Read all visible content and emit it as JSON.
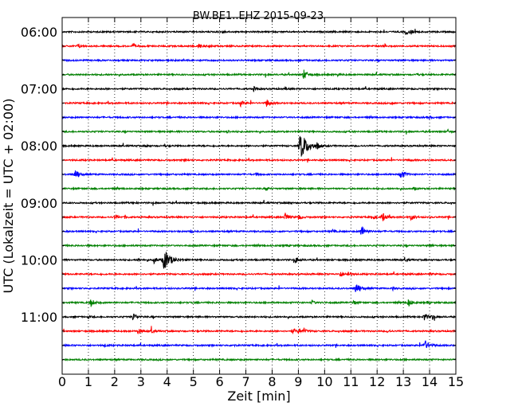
{
  "chart_data": {
    "type": "line",
    "title": "BW.BE1..EHZ 2015-09-23",
    "xlabel": "Zeit  [min]",
    "ylabel": "UTC (Lokalzeit = UTC + 02:00)",
    "xlim": [
      0,
      15
    ],
    "x_ticks": [
      "0",
      "1",
      "2",
      "3",
      "4",
      "5",
      "6",
      "7",
      "8",
      "9",
      "10",
      "11",
      "12",
      "13",
      "14",
      "15"
    ],
    "y_tick_labels": [
      "06:00",
      "07:00",
      "08:00",
      "09:00",
      "10:00",
      "11:00"
    ],
    "grid": true,
    "colors": [
      "#000000",
      "#ff0000",
      "#0000ff",
      "#008000"
    ],
    "series": [
      {
        "start": "06:00",
        "events": [
          [
            6.1,
            0.25
          ],
          [
            13.1,
            0.4
          ],
          [
            13.3,
            0.2
          ]
        ]
      },
      {
        "start": "06:15",
        "events": [
          [
            0.6,
            0.3
          ],
          [
            2.7,
            0.3
          ],
          [
            5.2,
            0.35
          ],
          [
            5.6,
            0.15
          ],
          [
            12.3,
            0.2
          ]
        ]
      },
      {
        "start": "06:30",
        "events": []
      },
      {
        "start": "06:45",
        "events": [
          [
            9.2,
            0.6
          ],
          [
            10.5,
            0.15
          ],
          [
            13.5,
            0.15
          ]
        ]
      },
      {
        "start": "07:00",
        "events": [
          [
            7.3,
            0.3
          ],
          [
            8.5,
            0.15
          ]
        ]
      },
      {
        "start": "07:15",
        "events": [
          [
            6.8,
            0.35
          ],
          [
            7.8,
            0.5
          ],
          [
            12.5,
            0.15
          ]
        ]
      },
      {
        "start": "07:30",
        "events": [
          [
            14.0,
            0.15
          ]
        ]
      },
      {
        "start": "07:45",
        "events": [
          [
            6.3,
            0.2
          ],
          [
            14.7,
            0.2
          ]
        ]
      },
      {
        "start": "08:00",
        "events": [
          [
            3.2,
            0.15
          ],
          [
            3.9,
            0.15
          ],
          [
            9.1,
            1.6
          ],
          [
            9.7,
            0.35
          ]
        ]
      },
      {
        "start": "08:15",
        "events": [
          [
            4.7,
            0.15
          ],
          [
            13.2,
            0.15
          ]
        ]
      },
      {
        "start": "08:30",
        "events": [
          [
            0.5,
            0.6
          ],
          [
            7.4,
            0.2
          ],
          [
            12.9,
            0.6
          ]
        ]
      },
      {
        "start": "08:45",
        "events": [
          [
            7.8,
            0.15
          ],
          [
            13.4,
            0.15
          ]
        ]
      },
      {
        "start": "09:00",
        "events": [
          [
            2.7,
            0.15
          ],
          [
            8.6,
            0.15
          ]
        ]
      },
      {
        "start": "09:15",
        "events": [
          [
            2.0,
            0.3
          ],
          [
            2.4,
            0.2
          ],
          [
            8.5,
            0.5
          ],
          [
            9.0,
            0.35
          ],
          [
            11.8,
            0.35
          ],
          [
            12.2,
            0.6
          ],
          [
            13.3,
            0.4
          ]
        ]
      },
      {
        "start": "09:30",
        "events": [
          [
            4.9,
            0.2
          ],
          [
            10.3,
            0.2
          ],
          [
            11.4,
            0.7
          ]
        ]
      },
      {
        "start": "09:45",
        "events": [
          [
            8.5,
            0.15
          ],
          [
            14.0,
            0.2
          ]
        ]
      },
      {
        "start": "10:00",
        "events": [
          [
            2.9,
            0.15
          ],
          [
            3.5,
            0.4
          ],
          [
            3.9,
            1.3
          ],
          [
            8.9,
            0.4
          ],
          [
            13.1,
            0.2
          ]
        ]
      },
      {
        "start": "10:15",
        "events": [
          [
            10.6,
            0.4
          ],
          [
            10.9,
            0.3
          ],
          [
            14.0,
            0.15
          ]
        ]
      },
      {
        "start": "10:30",
        "events": [
          [
            11.2,
            0.7
          ],
          [
            12.6,
            0.2
          ]
        ]
      },
      {
        "start": "10:45",
        "events": [
          [
            1.1,
            0.5
          ],
          [
            9.5,
            0.3
          ],
          [
            11.1,
            0.25
          ],
          [
            13.2,
            0.5
          ],
          [
            13.9,
            0.15
          ]
        ]
      },
      {
        "start": "11:00",
        "events": [
          [
            1.0,
            0.15
          ],
          [
            2.7,
            0.5
          ],
          [
            13.8,
            0.5
          ],
          [
            14.1,
            0.3
          ]
        ]
      },
      {
        "start": "11:15",
        "events": [
          [
            2.9,
            0.4
          ],
          [
            3.4,
            0.3
          ],
          [
            8.8,
            0.3
          ],
          [
            9.0,
            0.3
          ],
          [
            9.2,
            0.3
          ],
          [
            12.4,
            0.2
          ]
        ]
      },
      {
        "start": "11:30",
        "events": [
          [
            1.6,
            0.2
          ],
          [
            6.5,
            0.15
          ],
          [
            13.8,
            0.7
          ]
        ]
      },
      {
        "start": "11:45",
        "events": []
      }
    ]
  }
}
